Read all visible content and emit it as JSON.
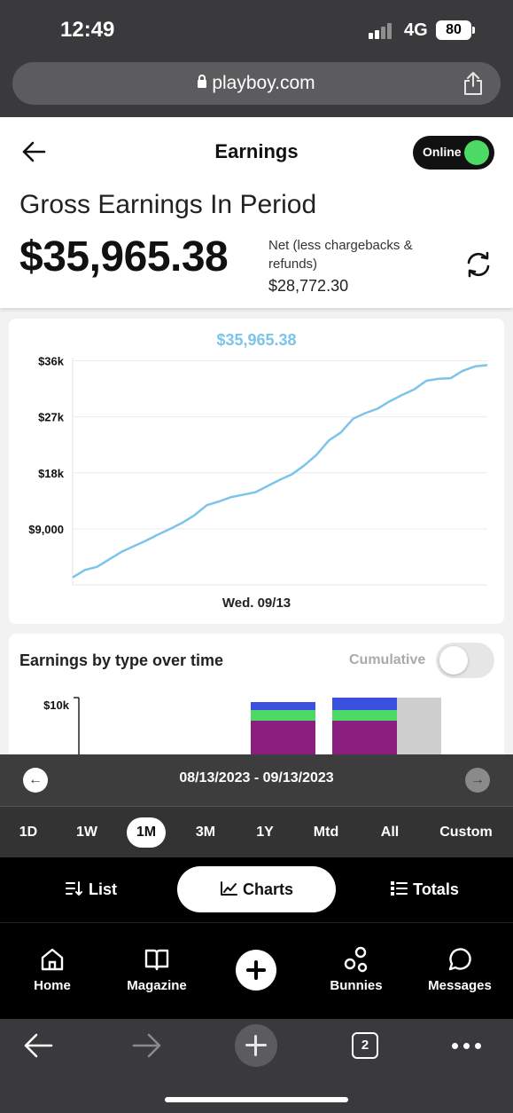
{
  "status": {
    "time": "12:49",
    "network": "4G",
    "battery": "80"
  },
  "browser": {
    "url": "playboy.com",
    "tab_count": "2"
  },
  "header": {
    "title": "Earnings",
    "online_label": "Online",
    "gross_label": "Gross Earnings In Period",
    "gross_amount": "$35,965.38",
    "net_caption": "Net (less chargebacks & refunds)",
    "net_amount": "$28,772.30"
  },
  "chart_data": [
    {
      "type": "line",
      "title": "$35,965.38",
      "xlabel": "Wed. 09/13",
      "ylabel": "",
      "y_ticks": [
        "$9,000",
        "$18k",
        "$27k",
        "$36k"
      ],
      "ylim": [
        0,
        36500
      ],
      "grid": true,
      "color": "#7cc4ea",
      "y": [
        1200,
        2400,
        2900,
        4100,
        5300,
        6200,
        7100,
        8100,
        9000,
        10000,
        11200,
        12800,
        13400,
        14100,
        14500,
        14900,
        15900,
        16900,
        17800,
        19200,
        20900,
        23200,
        24500,
        26700,
        27600,
        28300,
        29500,
        30500,
        31400,
        32800,
        33100,
        33200,
        34400,
        35100,
        35300
      ]
    },
    {
      "type": "bar",
      "title": "Earnings by type over time",
      "y_ticks": [
        "$10k"
      ],
      "ylim": [
        0,
        10000
      ],
      "stacked": true,
      "colors": [
        "#8b1f80",
        "#4cd964",
        "#3b4fe0",
        "#cfcfcf"
      ]
    }
  ],
  "type_card": {
    "title": "Earnings by type over time",
    "cumulative_label": "Cumulative"
  },
  "range": {
    "text": "08/13/2023 - 09/13/2023"
  },
  "periods": [
    "1D",
    "1W",
    "1M",
    "3M",
    "1Y",
    "Mtd",
    "All",
    "Custom"
  ],
  "active_period": "1M",
  "views": {
    "list": "List",
    "charts": "Charts",
    "totals": "Totals"
  },
  "nav": {
    "home": "Home",
    "magazine": "Magazine",
    "bunnies": "Bunnies",
    "messages": "Messages"
  }
}
